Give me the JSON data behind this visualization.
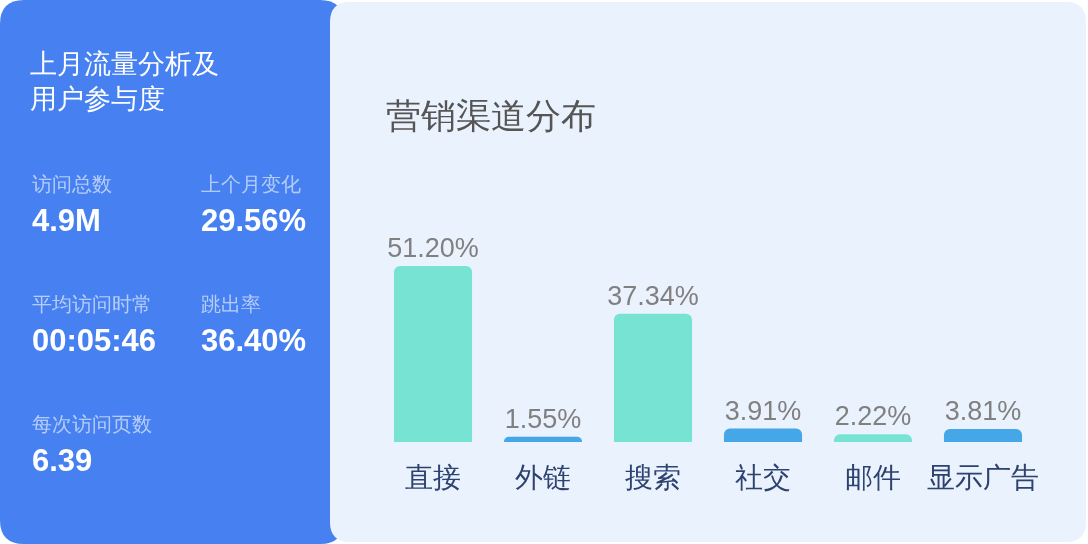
{
  "chart_data": [
    {
      "type": "other",
      "title": "上月流量分析及用户参与度",
      "annotations": [
        "访问总数",
        "4.9M",
        "上个月变化",
        "29.56%",
        "平均访问时常",
        "00:05:46",
        "跳出率",
        "36.40%",
        "每次访问页数",
        "6.39"
      ]
    },
    {
      "type": "bar",
      "title": "营销渠道分布",
      "categories": [
        "直接",
        "外链",
        "搜索",
        "社交",
        "邮件",
        "显示广告"
      ],
      "values": [
        51.2,
        1.55,
        37.34,
        3.91,
        2.22,
        3.81
      ],
      "colors": [
        "#77e4d3",
        "#45a6e8",
        "#77e4d3",
        "#45a6e8",
        "#77e4d3",
        "#45a6e8"
      ],
      "value_labels": [
        "51.20%",
        "1.55%",
        "37.34%",
        "3.91%",
        "2.22%",
        "3.81%"
      ]
    }
  ]
}
